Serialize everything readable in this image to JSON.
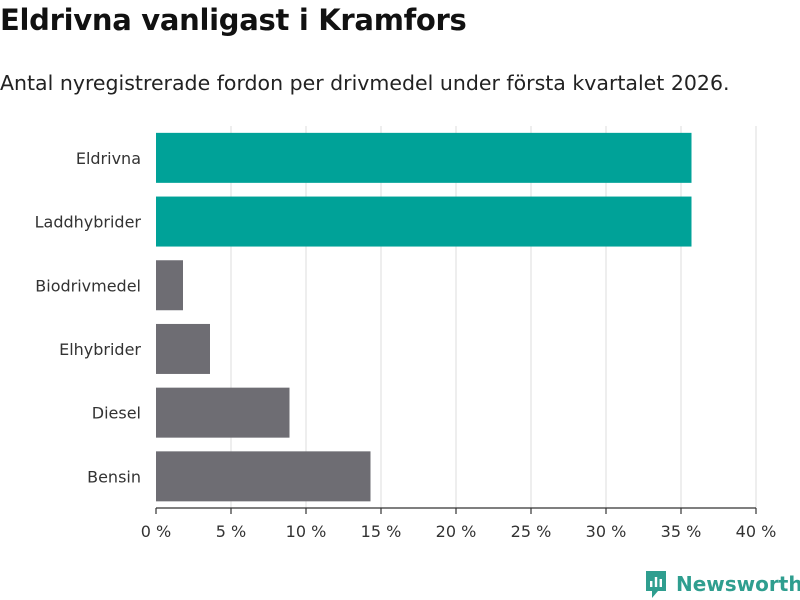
{
  "title": "Eldrivna vanligast i Kramfors",
  "subtitle": "Antal nyregistrerade fordon per drivmedel under första kvartalet 2026.",
  "brand": {
    "name": "Newsworthy",
    "color": "#2f9e8f"
  },
  "colors": {
    "highlight": "#00a298",
    "default": "#6e6d73",
    "grid": "#dddddd",
    "axis": "#333333"
  },
  "chart_data": {
    "type": "bar",
    "orientation": "horizontal",
    "categories": [
      "Eldrivna",
      "Laddhybrider",
      "Biodrivmedel",
      "Elhybrider",
      "Diesel",
      "Bensin"
    ],
    "values": [
      35.7,
      35.7,
      1.8,
      3.6,
      8.9,
      14.3
    ],
    "highlighted": [
      true,
      true,
      false,
      false,
      false,
      false
    ],
    "xlim": [
      0,
      40
    ],
    "xticks": [
      0,
      5,
      10,
      15,
      20,
      25,
      30,
      35,
      40
    ],
    "xtick_labels": [
      "0 %",
      "5 %",
      "10 %",
      "15 %",
      "20 %",
      "25 %",
      "30 %",
      "35 %",
      "40 %"
    ],
    "unit": "%",
    "grid": true
  }
}
